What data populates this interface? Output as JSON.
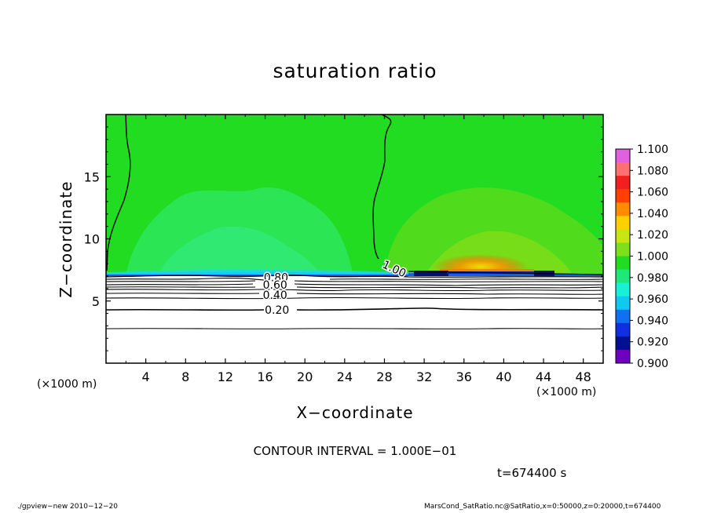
{
  "chart_data": {
    "type": "contour",
    "title": "saturation ratio",
    "xlabel": "X−coordinate",
    "ylabel": "Z−coordinate",
    "x_unit_label": "(×1000 m)",
    "y_unit_label": "(×1000 m)",
    "xlim": [
      0,
      50
    ],
    "ylim": [
      0,
      20
    ],
    "x_ticks": [
      4,
      8,
      12,
      16,
      20,
      24,
      28,
      32,
      36,
      40,
      44,
      48
    ],
    "y_ticks": [
      5,
      10,
      15
    ],
    "colorbar": {
      "labels": [
        "1.100",
        "1.080",
        "1.060",
        "1.040",
        "1.020",
        "1.000",
        "0.980",
        "0.960",
        "0.940",
        "0.920",
        "0.900"
      ],
      "colors": [
        "#e060e0",
        "#ff7070",
        "#f02020",
        "#ff4000",
        "#ff8c00",
        "#ffd000",
        "#c8e614",
        "#7ee01c",
        "#22dc22",
        "#1ee87a",
        "#18f0d8",
        "#10c8f0",
        "#1070f0",
        "#1030e0",
        "#001090",
        "#7000c0"
      ]
    },
    "contour_labels": [
      {
        "text": "1.00",
        "x": 29,
        "z": 7.6
      },
      {
        "text": "0.80",
        "x": 17.1,
        "z": 6.9
      },
      {
        "text": "0.60",
        "x": 17.0,
        "z": 6.3
      },
      {
        "text": "0.40",
        "x": 17.0,
        "z": 5.5
      },
      {
        "text": "0.20",
        "x": 17.2,
        "z": 4.3
      }
    ],
    "contour_interval": "CONTOUR INTERVAL = 1.000E−01",
    "time_label": "t=674400 s"
  },
  "footer": {
    "left": "./gpview−new   2010−12−20",
    "right": "MarsCond_SatRatio.nc@SatRatio,x=0:50000,z=0:20000,t=674400"
  }
}
